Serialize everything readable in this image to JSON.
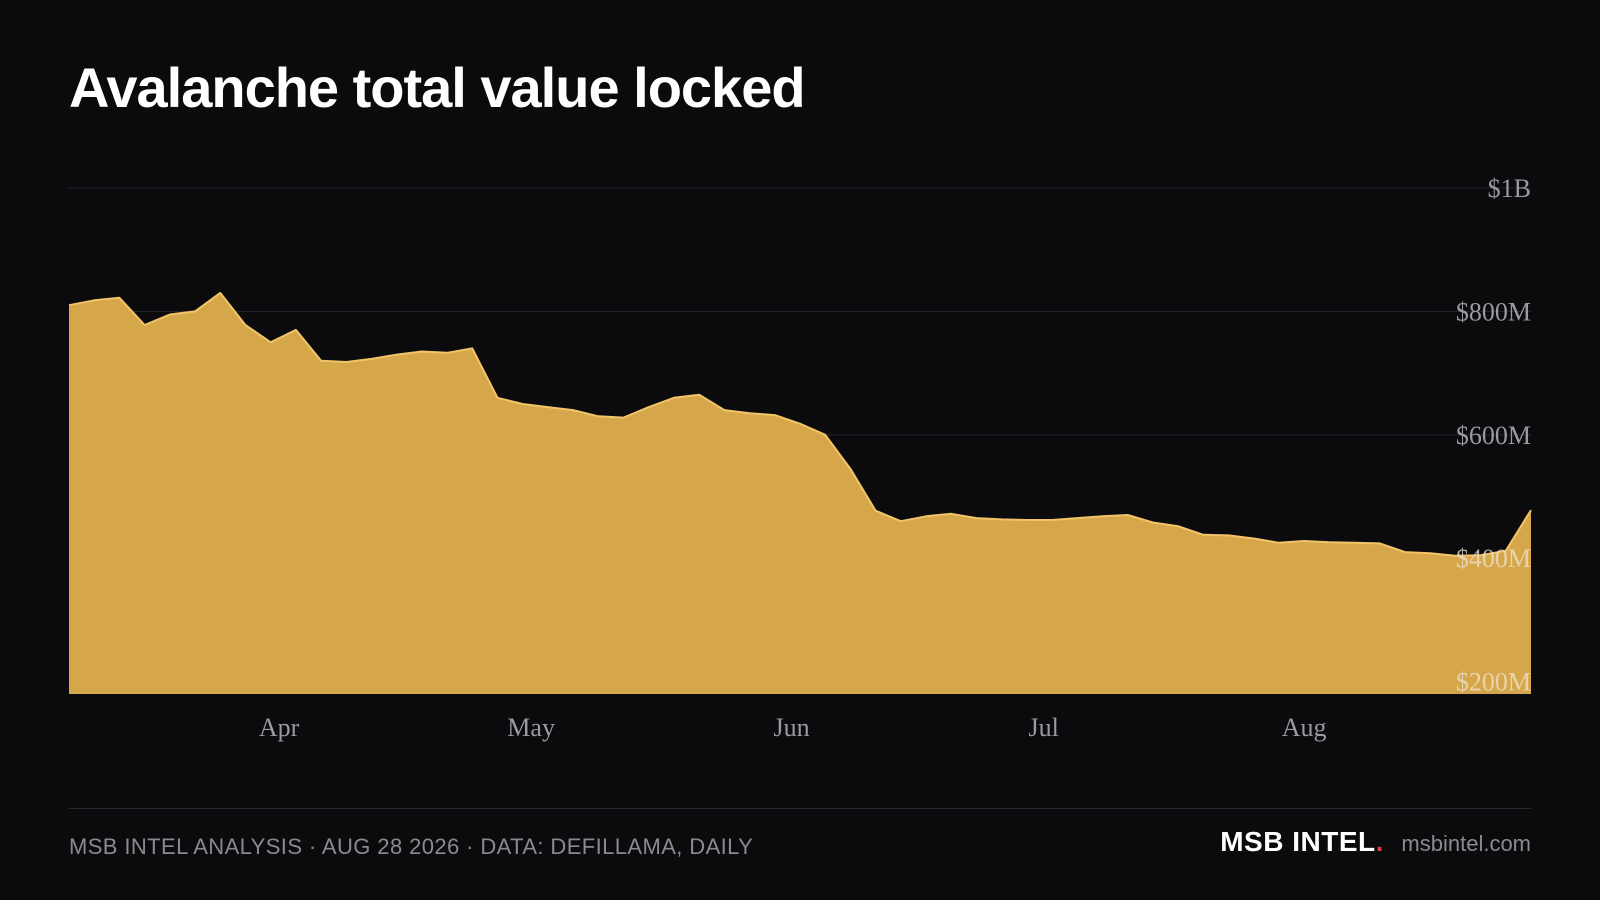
{
  "chart_data": {
    "type": "area",
    "title": "Avalanche total value locked",
    "x": [
      "2026-03-07",
      "2026-03-10",
      "2026-03-13",
      "2026-03-16",
      "2026-03-19",
      "2026-03-22",
      "2026-03-25",
      "2026-03-28",
      "2026-03-31",
      "2026-04-03",
      "2026-04-06",
      "2026-04-09",
      "2026-04-12",
      "2026-04-15",
      "2026-04-18",
      "2026-04-21",
      "2026-04-24",
      "2026-04-27",
      "2026-04-30",
      "2026-05-03",
      "2026-05-06",
      "2026-05-09",
      "2026-05-12",
      "2026-05-15",
      "2026-05-18",
      "2026-05-21",
      "2026-05-24",
      "2026-05-27",
      "2026-05-30",
      "2026-06-02",
      "2026-06-05",
      "2026-06-08",
      "2026-06-11",
      "2026-06-14",
      "2026-06-17",
      "2026-06-20",
      "2026-06-23",
      "2026-06-26",
      "2026-06-29",
      "2026-07-02",
      "2026-07-05",
      "2026-07-08",
      "2026-07-11",
      "2026-07-14",
      "2026-07-17",
      "2026-07-20",
      "2026-07-23",
      "2026-07-26",
      "2026-07-29",
      "2026-08-01",
      "2026-08-04",
      "2026-08-07",
      "2026-08-10",
      "2026-08-13",
      "2026-08-16",
      "2026-08-19",
      "2026-08-22",
      "2026-08-25",
      "2026-08-28"
    ],
    "series": [
      {
        "values": [
          810,
          818,
          822,
          778,
          795,
          800,
          830,
          778,
          750,
          770,
          720,
          718,
          723,
          730,
          735,
          733,
          740,
          660,
          650,
          645,
          640,
          630,
          628,
          645,
          660,
          665,
          640,
          635,
          632,
          618,
          600,
          545,
          477,
          460,
          468,
          472,
          465,
          463,
          462,
          462,
          465,
          468,
          470,
          458,
          452,
          438,
          437,
          432,
          425,
          428,
          426,
          425,
          424,
          410,
          408,
          404,
          405,
          412,
          478
        ]
      }
    ],
    "x_ticks": [
      "Apr",
      "May",
      "Jun",
      "Jul",
      "Aug"
    ],
    "y_ticks": [
      "$200M",
      "$400M",
      "$600M",
      "$800M",
      "$1B"
    ],
    "y_tick_values": [
      200,
      400,
      600,
      800,
      1000
    ],
    "ylim": [
      180,
      1000
    ],
    "xlabel": "",
    "ylabel": "",
    "grid": true,
    "colors": {
      "area": "#d6a74a",
      "line": "#f2c469",
      "grid": "#26262a",
      "axis_text": "#9a9a9f",
      "in_area_text": "#ece3cf"
    }
  },
  "footer": {
    "source": "MSB INTEL ANALYSIS · AUG 28 2026 · DATA: DEFILLAMA, DAILY",
    "brand": "MSB INTEL",
    "brand_dot": ".",
    "site": "msbintel.com"
  }
}
